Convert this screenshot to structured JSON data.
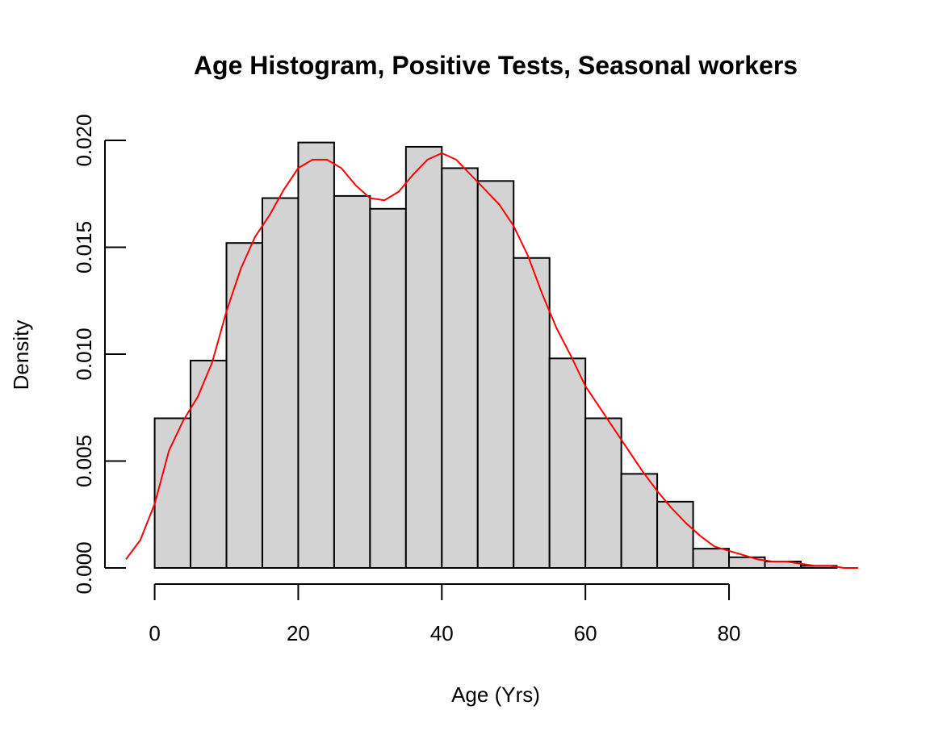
{
  "chart_data": {
    "type": "bar",
    "title": "Age Histogram, Positive Tests,  Seasonal workers",
    "xlabel": "Age (Yrs)",
    "ylabel": "Density",
    "bin_edges": [
      0,
      5,
      10,
      15,
      20,
      25,
      30,
      35,
      40,
      45,
      50,
      55,
      60,
      65,
      70,
      75,
      80,
      85,
      90,
      95
    ],
    "values": [
      0.007,
      0.0097,
      0.0152,
      0.0173,
      0.0199,
      0.0174,
      0.0168,
      0.0197,
      0.0187,
      0.0181,
      0.0145,
      0.0098,
      0.007,
      0.0044,
      0.0031,
      0.0009,
      0.0005,
      0.0003,
      0.0001
    ],
    "x_ticks": [
      0,
      20,
      40,
      60,
      80
    ],
    "x_tick_labels": [
      "0",
      "20",
      "40",
      "60",
      "80"
    ],
    "y_ticks": [
      0,
      0.005,
      0.01,
      0.015,
      0.02
    ],
    "y_tick_labels": [
      "0.000",
      "0.005",
      "0.010",
      "0.015",
      "0.020"
    ],
    "xlim": [
      -4,
      99
    ],
    "ylim": [
      0,
      0.02
    ],
    "grid": false,
    "bar_color": "#d3d3d3",
    "density_curve": {
      "color": "#ff0000",
      "x": [
        -4,
        -2,
        0,
        2,
        4,
        6,
        8,
        10,
        12,
        14,
        16,
        18,
        20,
        22,
        24,
        26,
        28,
        30,
        32,
        34,
        36,
        38,
        40,
        42,
        44,
        46,
        48,
        50,
        52,
        54,
        56,
        58,
        60,
        62,
        64,
        66,
        68,
        70,
        72,
        74,
        76,
        78,
        80,
        82,
        84,
        86,
        88,
        90,
        92,
        94,
        96,
        98
      ],
      "y": [
        0.0004,
        0.0013,
        0.003,
        0.0055,
        0.0069,
        0.008,
        0.0096,
        0.012,
        0.014,
        0.0155,
        0.0165,
        0.0177,
        0.0187,
        0.0191,
        0.0191,
        0.0187,
        0.0179,
        0.0173,
        0.0172,
        0.0176,
        0.0184,
        0.0191,
        0.0194,
        0.0191,
        0.0184,
        0.0177,
        0.017,
        0.016,
        0.0146,
        0.0128,
        0.0112,
        0.0099,
        0.0085,
        0.0075,
        0.0065,
        0.0055,
        0.0045,
        0.0036,
        0.0028,
        0.0021,
        0.0015,
        0.001,
        0.0008,
        0.0006,
        0.0004,
        0.0003,
        0.0003,
        0.0002,
        0.0001,
        0.0001,
        0.0,
        0.0
      ]
    }
  }
}
